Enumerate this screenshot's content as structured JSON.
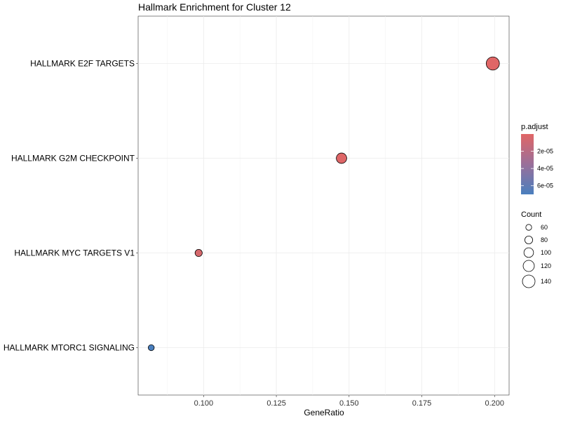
{
  "chart_data": {
    "type": "scatter",
    "title": "Hallmark Enrichment for Cluster 12",
    "xlabel": "GeneRatio",
    "ylabel": "",
    "xlim": [
      0.0775,
      0.205
    ],
    "x_ticks": [
      "0.100",
      "0.125",
      "0.150",
      "0.175",
      "0.200"
    ],
    "x_tick_values": [
      0.1,
      0.125,
      0.15,
      0.175,
      0.2
    ],
    "categories": [
      "HALLMARK E2F TARGETS",
      "HALLMARK G2M CHECKPOINT",
      "HALLMARK MYC TARGETS V1",
      "HALLMARK MTORC1 SIGNALING"
    ],
    "points": [
      {
        "term": "HALLMARK E2F TARGETS",
        "gene_ratio": 0.1994,
        "count": 148,
        "p_adjust": 1e-07
      },
      {
        "term": "HALLMARK G2M CHECKPOINT",
        "gene_ratio": 0.1474,
        "count": 110,
        "p_adjust": 1e-06
      },
      {
        "term": "HALLMARK MYC TARGETS V1",
        "gene_ratio": 0.0983,
        "count": 73,
        "p_adjust": 5e-06
      },
      {
        "term": "HALLMARK MTORC1 SIGNALING",
        "gene_ratio": 0.082,
        "count": 61,
        "p_adjust": 7e-05
      }
    ],
    "grid": true,
    "color_legend": {
      "title": "p.adjust",
      "ticks": [
        "2e-05",
        "4e-05",
        "6e-05"
      ],
      "tick_values": [
        2e-05,
        4e-05,
        6e-05
      ],
      "range": [
        0,
        7e-05
      ],
      "low_color": "#E06666",
      "high_color": "#4A7FBE"
    },
    "size_legend": {
      "title": "Count",
      "values": [
        60,
        80,
        100,
        120,
        140
      ],
      "labels": [
        "60",
        "80",
        "100",
        "120",
        "140"
      ]
    },
    "legend_position": "right"
  }
}
